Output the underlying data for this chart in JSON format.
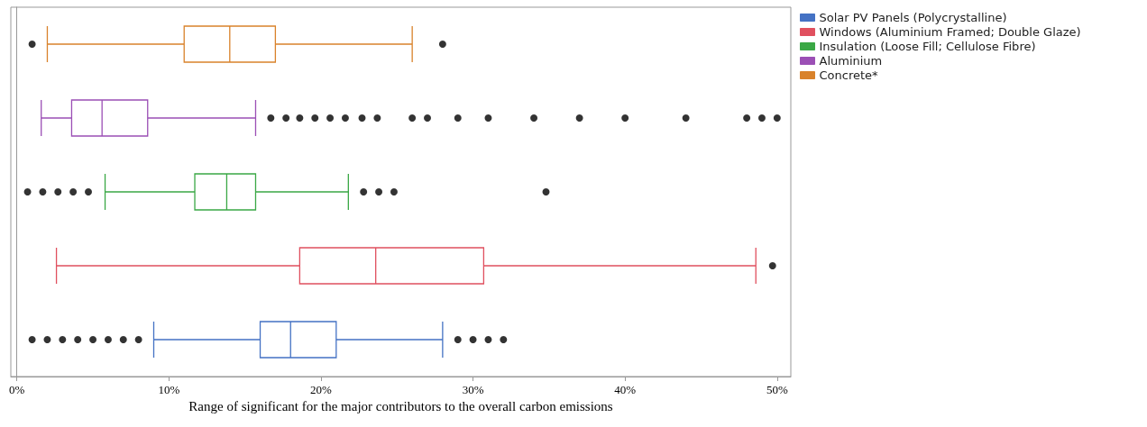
{
  "chart_data": {
    "type": "box",
    "orientation": "horizontal",
    "xlabel": "Range of significant for the major contributors to the overall carbon emissions",
    "categories": [
      null,
      null,
      null,
      null,
      null
    ],
    "xlim": [
      -0.4,
      50.9
    ],
    "xticks": [
      {
        "value": 0,
        "label": "0%"
      },
      {
        "value": 10,
        "label": "10%"
      },
      {
        "value": 20,
        "label": "20%"
      },
      {
        "value": 30,
        "label": "30%"
      },
      {
        "value": 40,
        "label": "40%"
      },
      {
        "value": 50,
        "label": "50%"
      }
    ],
    "legend": "top right",
    "series": [
      {
        "name": "Solar PV Panels (Polycrystalline)",
        "color": "#4472c4",
        "boxes": [
          null,
          null,
          null,
          null,
          {
            "low": 9,
            "q1": 16,
            "median": 18,
            "q3": 21,
            "high": 28,
            "outliers": [
              1,
              2,
              3,
              4,
              5,
              6,
              7,
              8,
              29,
              30,
              31,
              32
            ]
          }
        ]
      },
      {
        "name": "Windows (Aluminium Framed; Double Glaze)",
        "color": "#e0505f",
        "boxes": [
          null,
          null,
          null,
          {
            "low": 2.6,
            "q1": 18.6,
            "median": 23.6,
            "q3": 30.7,
            "high": 48.6,
            "outliers": [
              49.7
            ]
          },
          null
        ]
      },
      {
        "name": "Insulation (Loose Fill; Cellulose Fibre)",
        "color": "#3aa845",
        "boxes": [
          null,
          null,
          {
            "low": 5.8,
            "q1": 11.7,
            "median": 13.8,
            "q3": 15.7,
            "high": 21.8,
            "outliers": [
              0.7,
              1.7,
              2.7,
              3.7,
              4.7,
              22.8,
              23.8,
              24.8,
              34.8
            ]
          },
          null,
          null
        ]
      },
      {
        "name": "Aluminium",
        "color": "#9b4fb5",
        "boxes": [
          null,
          {
            "low": 1.6,
            "q1": 3.6,
            "median": 5.6,
            "q3": 8.6,
            "high": 15.7,
            "outliers": [
              16.7,
              17.7,
              18.6,
              19.6,
              20.6,
              21.6,
              22.7,
              23.7,
              26,
              27,
              29,
              31,
              34,
              37,
              40,
              44,
              48,
              49,
              50
            ]
          },
          null,
          null,
          null
        ]
      },
      {
        "name": "Concrete*",
        "color": "#d9822b",
        "boxes": [
          {
            "low": 2,
            "q1": 11,
            "median": 14,
            "q3": 17,
            "high": 26,
            "outliers": [
              1,
              28
            ]
          },
          null,
          null,
          null,
          null
        ]
      }
    ]
  }
}
